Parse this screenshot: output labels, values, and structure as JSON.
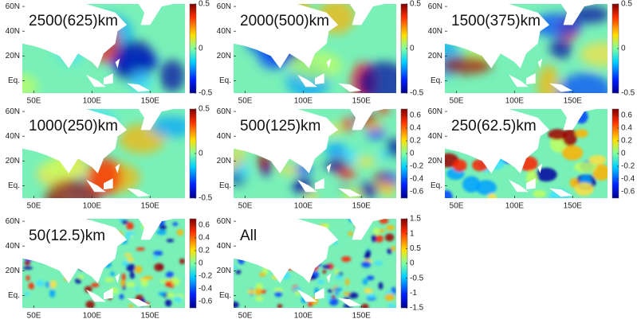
{
  "panels": [
    {
      "title": "2500(625)km",
      "clim": [
        -0.5,
        0.5
      ],
      "cticks": [
        -0.5,
        0,
        0.5
      ]
    },
    {
      "title": "2000(500)km",
      "clim": [
        -0.5,
        0.5
      ],
      "cticks": [
        -0.5,
        0,
        0.5
      ]
    },
    {
      "title": "1500(375)km",
      "clim": [
        -0.5,
        0.5
      ],
      "cticks": [
        -0.5,
        0,
        0.5
      ]
    },
    {
      "title": "1000(250)km",
      "clim": [
        -0.5,
        0.5
      ],
      "cticks": [
        -0.5,
        0,
        0.5
      ]
    },
    {
      "title": "500(125)km",
      "clim": [
        -0.7,
        0.7
      ],
      "cticks": [
        -0.6,
        -0.4,
        -0.2,
        0,
        0.2,
        0.4,
        0.6
      ]
    },
    {
      "title": "250(62.5)km",
      "clim": [
        -0.7,
        0.7
      ],
      "cticks": [
        -0.6,
        -0.4,
        -0.2,
        0,
        0.2,
        0.4,
        0.6
      ]
    },
    {
      "title": "50(12.5)km",
      "clim": [
        -0.7,
        0.7
      ],
      "cticks": [
        -0.6,
        -0.4,
        -0.2,
        0,
        0.2,
        0.4,
        0.6
      ]
    },
    {
      "title": "All",
      "clim": [
        -1.5,
        1.5
      ],
      "cticks": [
        -1.5,
        -1,
        -0.5,
        0,
        0.5,
        1,
        1.5
      ]
    }
  ],
  "xlim": [
    40,
    180
  ],
  "xticks": [
    {
      "value": 50,
      "label": "50E"
    },
    {
      "value": 100,
      "label": "100E"
    },
    {
      "value": 150,
      "label": "150E"
    }
  ],
  "ylim": [
    -10,
    62
  ],
  "yticks": [
    {
      "value": 0,
      "label": "Eq."
    },
    {
      "value": 20,
      "label": "20N"
    },
    {
      "value": 40,
      "label": "40N"
    },
    {
      "value": 60,
      "label": "60N"
    }
  ]
}
